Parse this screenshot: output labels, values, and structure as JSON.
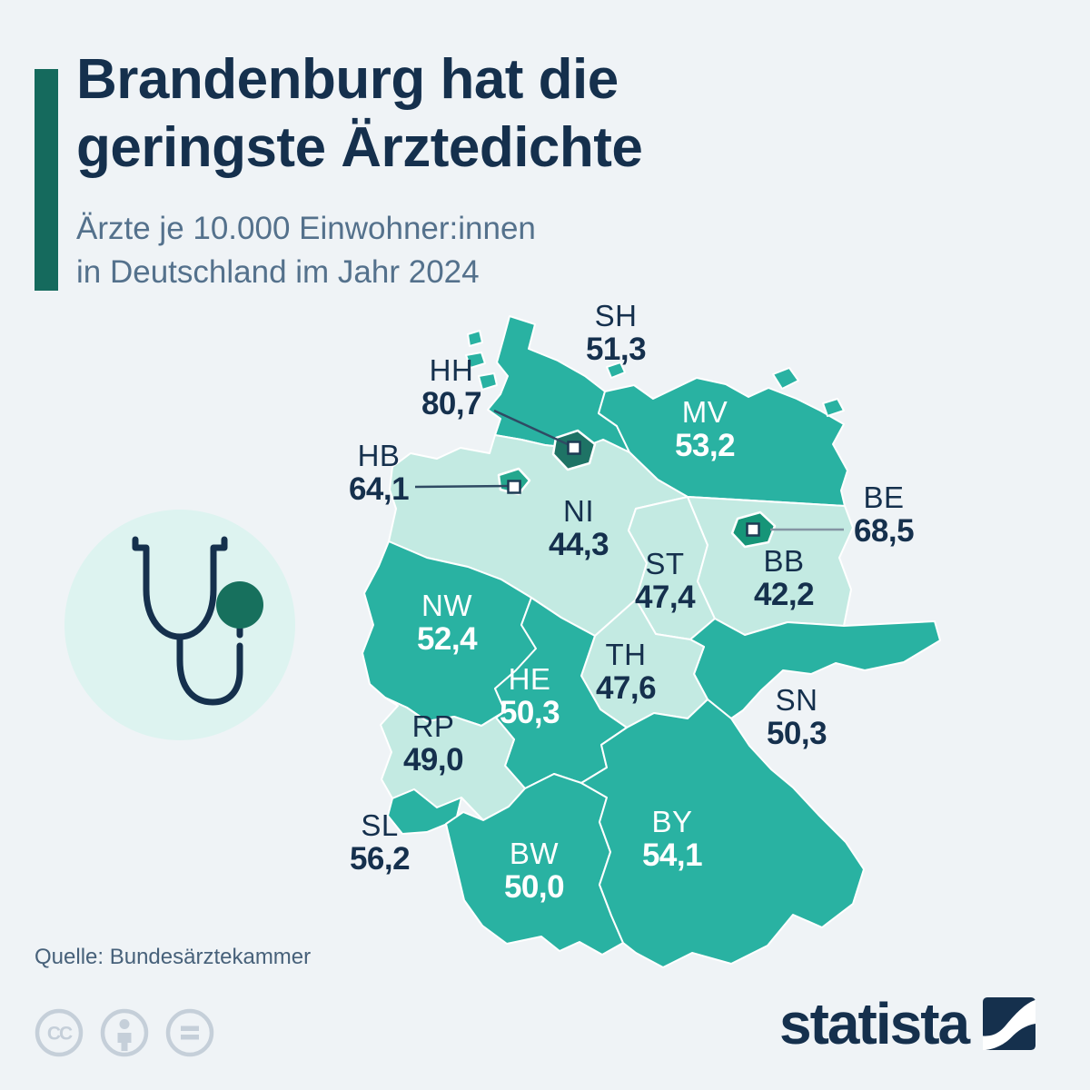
{
  "header": {
    "title_line1": "Brandenburg hat die",
    "title_line2": "geringste Ärztedichte",
    "subtitle_line1": "Ärzte je 10.000 Einwohner:innen",
    "subtitle_line2": "in Deutschland im Jahr 2024"
  },
  "chart_data": {
    "type": "choropleth",
    "title": "Brandenburg hat die geringste Ärztedichte",
    "subtitle": "Ärzte je 10.000 Einwohner:innen in Deutschland im Jahr 2024",
    "unit": "Ärzte je 10.000 Einwohner:innen",
    "year": "2024",
    "region": "Deutschland (Bundesländer)",
    "legend": "none",
    "states": [
      {
        "code": "SH",
        "display": "51,3",
        "value": 51.3,
        "shade": "medium",
        "label": "dark",
        "callout": false
      },
      {
        "code": "HH",
        "display": "80,7",
        "value": 80.7,
        "shade": "dark-hh",
        "label": "dark",
        "callout": true
      },
      {
        "code": "MV",
        "display": "53,2",
        "value": 53.2,
        "shade": "medium",
        "label": "white",
        "callout": false
      },
      {
        "code": "HB",
        "display": "64,1",
        "value": 64.1,
        "shade": "dark-hb",
        "label": "dark",
        "callout": true
      },
      {
        "code": "BE",
        "display": "68,5",
        "value": 68.5,
        "shade": "dark-be",
        "label": "dark",
        "callout": true
      },
      {
        "code": "NI",
        "display": "44,3",
        "value": 44.3,
        "shade": "light",
        "label": "dark",
        "callout": false
      },
      {
        "code": "ST",
        "display": "47,4",
        "value": 47.4,
        "shade": "light",
        "label": "dark",
        "callout": false
      },
      {
        "code": "BB",
        "display": "42,2",
        "value": 42.2,
        "shade": "light",
        "label": "dark",
        "callout": false
      },
      {
        "code": "NW",
        "display": "52,4",
        "value": 52.4,
        "shade": "medium",
        "label": "white",
        "callout": false
      },
      {
        "code": "TH",
        "display": "47,6",
        "value": 47.6,
        "shade": "light",
        "label": "dark",
        "callout": false
      },
      {
        "code": "HE",
        "display": "50,3",
        "value": 50.3,
        "shade": "medium",
        "label": "white",
        "callout": false
      },
      {
        "code": "SN",
        "display": "50,3",
        "value": 50.3,
        "shade": "medium",
        "label": "dark",
        "callout": false
      },
      {
        "code": "RP",
        "display": "49,0",
        "value": 49.0,
        "shade": "light",
        "label": "dark",
        "callout": false
      },
      {
        "code": "SL",
        "display": "56,2",
        "value": 56.2,
        "shade": "medium",
        "label": "dark",
        "callout": false
      },
      {
        "code": "BW",
        "display": "50,0",
        "value": 50.0,
        "shade": "medium",
        "label": "white",
        "callout": false
      },
      {
        "code": "BY",
        "display": "54,1",
        "value": 54.1,
        "shade": "medium",
        "label": "white",
        "callout": false
      }
    ]
  },
  "palette": {
    "bg": "#eff3f6",
    "navy": "#15304d",
    "slate": "#54718c",
    "accent_bar": "#156a5d",
    "state_light": "#c3eae2",
    "state_medium": "#29b2a2",
    "state_hh": "#1e7365",
    "state_be": "#169578",
    "state_hb": "#24a78e",
    "label_white": "#ffffff",
    "source_text": "#47617a",
    "cc_gray": "#c5cfd9",
    "icon_circle_bg": "#ddf3f0",
    "icon_green": "#17705d",
    "leader_dark": "#2f4a63",
    "leader_gray": "#8494a3",
    "marker_border": "#1d3b54",
    "border_white": "#ffffff"
  },
  "footer": {
    "source": "Quelle: Bundesärztekammer",
    "brand": "statista",
    "license_icons": [
      "cc-icon",
      "attribution-person-icon",
      "no-derivatives-equals-icon"
    ]
  }
}
